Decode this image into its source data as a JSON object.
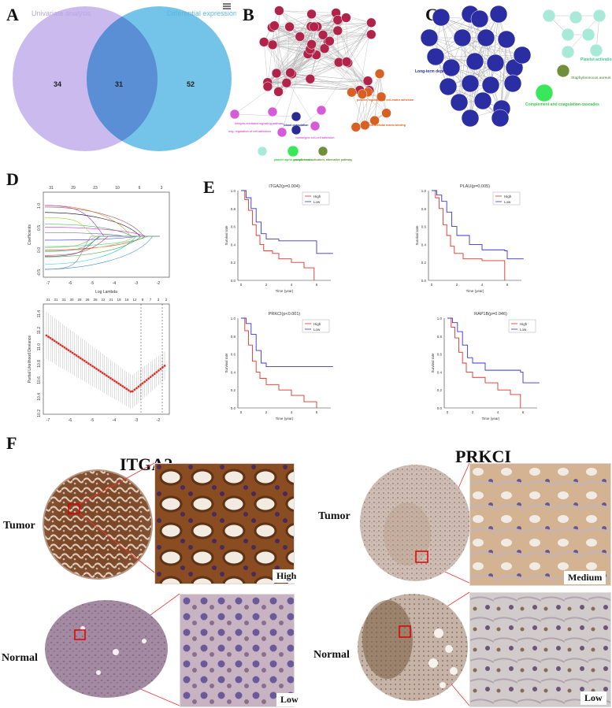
{
  "panels": {
    "A": {
      "letter": "A",
      "venn": {
        "left_label": "Univariate analysis",
        "right_label": "Differential expression",
        "left_only": "34",
        "overlap": "31",
        "right_only": "52",
        "left_color": "#c6b3ea",
        "right_color": "#5ab4e0",
        "overlap_color": "#5a8fd4"
      },
      "menu_icon": "hamburger-icon"
    },
    "B": {
      "letter": "B",
      "labels": [
        "blood coagulation",
        "homotypic cell-cell adhesion",
        "integrin-mediated signaling pathway",
        "complement activation, alternative pathway",
        "platelet alpha granule lumen",
        "positive regulation of cell-matrix adhesion",
        "neg. regulation of cell adhesion",
        "extracellular matrix binding"
      ]
    },
    "C": {
      "letter": "C",
      "labels": [
        "Long-term depression",
        "Platelet activation",
        "Staphylococcus aureus infection",
        "Complement and coagulation cascades"
      ]
    },
    "D": {
      "letter": "D",
      "top_axis_ticks": [
        "31",
        "29",
        "23",
        "10",
        "6",
        "3"
      ],
      "top_xlabel": "Log Lambda",
      "top_ylabel": "Coefficients",
      "top_xticks": [
        "-7",
        "-6",
        "-5",
        "-4",
        "-3",
        "-2"
      ],
      "top_yticks": [
        "1.0",
        "0.5",
        "0.0",
        "-0.5"
      ],
      "bottom_axis_ticks": [
        "31",
        "31",
        "31",
        "30",
        "28",
        "26",
        "25",
        "22",
        "21",
        "19",
        "16",
        "12",
        "9",
        "7",
        "3",
        "2"
      ],
      "bottom_xlabel": "Log(λ)",
      "bottom_ylabel": "Partial Likelihood Deviance",
      "bottom_xticks": [
        "-7",
        "-6",
        "-5",
        "-4",
        "-3",
        "-2"
      ],
      "bottom_yticks": [
        "11.4",
        "11.2",
        "11.0",
        "10.8",
        "10.6",
        "10.4",
        "10.2"
      ]
    },
    "E": {
      "letter": "E",
      "plots": [
        {
          "title": "ITGA2(p=0.004)",
          "legend_high": "High",
          "legend_low": "Low",
          "xlabel": "Time (year)",
          "ylabel": "Survival rate"
        },
        {
          "title": "PLAU(p=0.005)",
          "legend_high": "High",
          "legend_low": "Low",
          "xlabel": "Time (year)",
          "ylabel": "Survival rate"
        },
        {
          "title": "PRKCI(p<0.001)",
          "legend_high": "High",
          "legend_low": "Low",
          "xlabel": "Time (year)",
          "ylabel": "Survival rate"
        },
        {
          "title": "RAP1B(p=0.046)",
          "legend_high": "High",
          "legend_low": "Low",
          "xlabel": "Time (year)",
          "ylabel": "Survival rate"
        }
      ],
      "yticks": [
        "1.0",
        "0.8",
        "0.6",
        "0.4",
        "0.2",
        "0.0"
      ],
      "xticks": [
        "0",
        "2",
        "4",
        "6"
      ],
      "high_color": "#e0302a",
      "low_color": "#3535d0"
    },
    "F": {
      "letter": "F",
      "left_gene": "ITGA2",
      "right_gene": "PRKCI",
      "tumor_label": "Tumor",
      "normal_label": "Normal",
      "itga2_tumor_level": "High",
      "itga2_normal_level": "Low",
      "prkci_tumor_level": "Medium",
      "prkci_normal_level": "Low"
    }
  }
}
